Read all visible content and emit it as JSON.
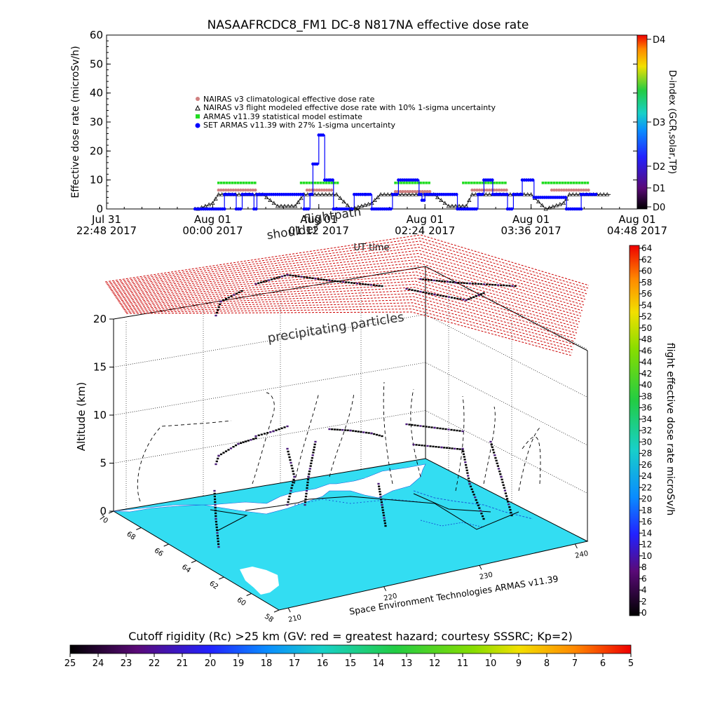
{
  "top_chart": {
    "title": "NASAAFRCDC8_FM1 DC-8   N817NA effective dose rate",
    "ylabel": "Effective dose rate (microSv/h)",
    "xlabel": "UT time",
    "yticks": [
      "0",
      "10",
      "20",
      "30",
      "40",
      "50",
      "60"
    ],
    "xticks": [
      {
        "l1": "Jul 31",
        "l2": "22:48 2017"
      },
      {
        "l1": "Aug 01",
        "l2": "00:00 2017"
      },
      {
        "l1": "Aug 01",
        "l2": "01:12 2017"
      },
      {
        "l1": "Aug 01",
        "l2": "02:24 2017"
      },
      {
        "l1": "Aug 01",
        "l2": "03:36 2017"
      },
      {
        "l1": "Aug 01",
        "l2": "04:48 2017"
      }
    ],
    "legend": [
      "NAIRAS v3 climatological effective dose rate",
      "NAIRAS v3 flight modeled effective dose rate with 10% 1-sigma uncertainty",
      "ARMAS v11.39 statistical model estimate",
      "SET ARMAS v11.39 with 27% 1-sigma uncertainty"
    ],
    "overlay_labels": [
      "shoulder",
      "flightpath"
    ],
    "dindex_label": "D-index (GCR,solar,TP)",
    "dindex_ticks": [
      "D4",
      "D3",
      "D2",
      "D1",
      "D0"
    ]
  },
  "bottom_chart": {
    "zlabel": "Altitude (km)",
    "zticks": [
      "0",
      "5",
      "10",
      "15",
      "20"
    ],
    "lat_ticks": [
      "70",
      "68",
      "66",
      "64",
      "62",
      "60",
      "58"
    ],
    "lon_ticks": [
      "210",
      "220",
      "230",
      "240"
    ],
    "layer_label": "precipitating particles",
    "credit": "Space Environment Technologies ARMAS v11.39",
    "dose_colorbar_label": "flight effective dose rate microSv/h",
    "dose_colorbar_ticks": [
      "0",
      "2",
      "4",
      "6",
      "8",
      "10",
      "12",
      "14",
      "16",
      "18",
      "20",
      "22",
      "24",
      "26",
      "28",
      "30",
      "32",
      "34",
      "36",
      "38",
      "40",
      "42",
      "44",
      "46",
      "48",
      "50",
      "52",
      "54",
      "56",
      "58",
      "60",
      "62",
      "64"
    ]
  },
  "rigidity_bar": {
    "title": "Cutoff rigidity (Rc) >25 km (GV: red = greatest hazard; courtesy SSSRC; Kp=2)",
    "ticks": [
      "25",
      "24",
      "23",
      "22",
      "21",
      "20",
      "19",
      "18",
      "17",
      "16",
      "15",
      "14",
      "13",
      "12",
      "11",
      "10",
      "9",
      "8",
      "7",
      "6",
      "5"
    ]
  },
  "colors": {
    "nairas_clim": "#d08080",
    "nairas_flight": "#000000",
    "armas_model": "#22dd22",
    "set_armas": "#0000ff",
    "grid_red": "#cc0000",
    "map_sea": "#33ddf2",
    "map_land": "#ffffff"
  },
  "chart_data": [
    {
      "type": "line",
      "title": "NASAAFRCDC8_FM1 DC-8   N817NA effective dose rate",
      "xlabel": "UT time",
      "ylabel": "Effective dose rate (microSv/h)",
      "ylim": [
        0,
        60
      ],
      "xlim": [
        "2017-07-31 22:48",
        "2017-08-01 04:48"
      ],
      "series": [
        {
          "name": "SET ARMAS v11.39 with 27% 1-sigma uncertainty",
          "x": [
            "2017-07-31 23:48",
            "2017-08-01 00:08",
            "2017-08-01 00:12",
            "2017-08-01 00:16",
            "2017-08-01 00:20",
            "2017-08-01 00:24",
            "2017-08-01 00:28",
            "2017-08-01 00:30",
            "2017-08-01 00:34",
            "2017-08-01 01:02",
            "2017-08-01 01:06",
            "2017-08-01 01:08",
            "2017-08-01 01:12",
            "2017-08-01 01:16",
            "2017-08-01 01:20",
            "2017-08-01 01:22",
            "2017-08-01 01:36",
            "2017-08-01 01:44",
            "2017-08-01 01:48",
            "2017-08-01 02:02",
            "2017-08-01 02:06",
            "2017-08-01 02:20",
            "2017-08-01 02:22",
            "2017-08-01 02:24",
            "2017-08-01 02:46",
            "2017-08-01 03:00",
            "2017-08-01 03:04",
            "2017-08-01 03:10",
            "2017-08-01 03:14",
            "2017-08-01 03:20",
            "2017-08-01 03:24",
            "2017-08-01 03:30",
            "2017-08-01 03:38",
            "2017-08-01 04:00",
            "2017-08-01 04:10",
            "2017-08-01 04:20"
          ],
          "y": [
            0,
            5,
            5,
            0,
            5,
            5,
            0,
            5,
            5,
            0,
            5,
            15.5,
            25.5,
            10,
            10,
            0,
            5,
            5,
            0,
            5,
            10,
            5,
            3,
            5,
            0,
            5,
            10,
            5,
            5,
            0,
            5,
            10,
            4,
            0,
            5,
            5
          ]
        },
        {
          "name": "ARMAS v11.39 statistical model estimate",
          "x": [
            "2017-08-01 00:04",
            "2017-08-01 00:30",
            "2017-08-01 01:00",
            "2017-08-01 01:26",
            "2017-08-01 02:04",
            "2017-08-01 02:28",
            "2017-08-01 02:50",
            "2017-08-01 03:20",
            "2017-08-01 03:44",
            "2017-08-01 04:16"
          ],
          "y": [
            9,
            9,
            9,
            9,
            9,
            9,
            9,
            9,
            9,
            9
          ]
        },
        {
          "name": "NAIRAS v3 climatological effective dose rate",
          "x": [
            "2017-08-01 00:04",
            "2017-08-01 00:30",
            "2017-08-01 01:04",
            "2017-08-01 01:22",
            "2017-08-01 02:04",
            "2017-08-01 02:28",
            "2017-08-01 02:56",
            "2017-08-01 03:20",
            "2017-08-01 03:50",
            "2017-08-01 04:16"
          ],
          "y": [
            6.5,
            6.5,
            6.5,
            6.5,
            6,
            6,
            6.5,
            6.5,
            6.5,
            6.5
          ]
        },
        {
          "name": "NAIRAS v3 flight modeled effective dose rate with 10% 1-sigma uncertainty",
          "x": [
            "2017-07-31 23:50",
            "2017-08-01 00:00",
            "2017-08-01 00:04",
            "2017-08-01 00:34",
            "2017-08-01 00:44",
            "2017-08-01 00:56",
            "2017-08-01 01:02",
            "2017-08-01 01:24",
            "2017-08-01 01:34",
            "2017-08-01 01:48",
            "2017-08-01 01:54",
            "2017-08-01 02:30",
            "2017-08-01 02:40",
            "2017-08-01 02:52",
            "2017-08-01 02:56",
            "2017-08-01 03:36",
            "2017-08-01 03:46",
            "2017-08-01 03:58",
            "2017-08-01 04:02",
            "2017-08-01 04:30"
          ],
          "y": [
            0,
            2,
            5,
            5,
            1,
            1,
            5,
            5,
            0,
            2,
            5,
            5,
            1,
            1,
            5,
            5,
            0,
            2,
            5,
            5
          ]
        }
      ],
      "secondary_axis": {
        "label": "D-index (GCR,solar,TP)",
        "ticks": [
          "D0",
          "D1",
          "D2",
          "D3",
          "D4"
        ]
      }
    },
    {
      "type": "scatter",
      "title": "",
      "xlabel": "",
      "ylabel": "Altitude (km)",
      "zlim": [
        0,
        20
      ],
      "lon_range": [
        210,
        240
      ],
      "lat_range": [
        58,
        70
      ],
      "colorbar": {
        "label": "flight effective dose rate microSv/h",
        "range": [
          0,
          64
        ]
      },
      "annotation": "precipitating particles"
    },
    {
      "type": "heatmap",
      "title": "Cutoff rigidity (Rc) >25 km (GV: red = greatest hazard; courtesy SSSRC; Kp=2)",
      "colorbar_range": [
        25,
        5
      ]
    }
  ]
}
